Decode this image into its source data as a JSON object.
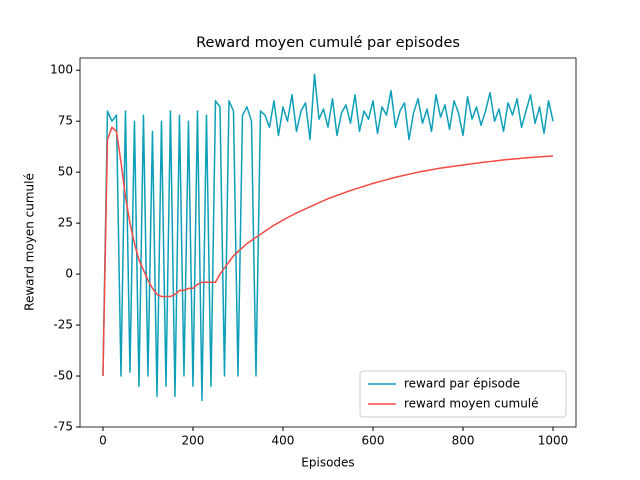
{
  "chart_data": {
    "type": "line",
    "title": "Reward moyen cumulé par episodes",
    "x_label": "Episodes",
    "y_label": "Reward moyen cumulé",
    "x": [
      0,
      10,
      20,
      30,
      40,
      50,
      60,
      70,
      80,
      90,
      100,
      110,
      120,
      130,
      140,
      150,
      160,
      170,
      180,
      190,
      200,
      210,
      220,
      230,
      240,
      250,
      260,
      270,
      280,
      290,
      300,
      310,
      320,
      330,
      340,
      350,
      360,
      370,
      380,
      390,
      400,
      410,
      420,
      430,
      440,
      450,
      460,
      470,
      480,
      490,
      500,
      510,
      520,
      530,
      540,
      550,
      560,
      570,
      580,
      590,
      600,
      610,
      620,
      630,
      640,
      650,
      660,
      670,
      680,
      690,
      700,
      710,
      720,
      730,
      740,
      750,
      760,
      770,
      780,
      790,
      800,
      810,
      820,
      830,
      840,
      850,
      860,
      870,
      880,
      890,
      900,
      910,
      920,
      930,
      940,
      950,
      960,
      970,
      980,
      990,
      1000
    ],
    "series": [
      {
        "name": "reward par épisode",
        "color": "#0e9fb8",
        "values": [
          -50,
          80,
          75,
          78,
          -50,
          80,
          -48,
          75,
          -55,
          78,
          -50,
          70,
          -60,
          75,
          -55,
          80,
          -60,
          78,
          -50,
          75,
          -55,
          80,
          -62,
          78,
          -55,
          85,
          82,
          -50,
          85,
          80,
          -50,
          78,
          82,
          75,
          -50,
          80,
          78,
          72,
          85,
          68,
          82,
          75,
          88,
          70,
          80,
          84,
          66,
          98,
          76,
          81,
          72,
          86,
          68,
          79,
          83,
          74,
          88,
          70,
          80,
          76,
          85,
          69,
          82,
          78,
          90,
          72,
          80,
          84,
          66,
          79,
          86,
          74,
          81,
          70,
          88,
          77,
          83,
          71,
          85,
          79,
          68,
          87,
          76,
          82,
          73,
          80,
          89,
          75,
          81,
          70,
          84,
          78,
          86,
          72,
          80,
          88,
          74,
          82,
          69,
          85,
          75
        ]
      },
      {
        "name": "reward moyen cumulé",
        "color": "#f44a45",
        "values": [
          -50,
          66,
          72,
          70,
          55,
          38,
          25,
          15,
          7,
          2,
          -3,
          -7,
          -10,
          -11,
          -11,
          -11,
          -10,
          -8,
          -8,
          -7,
          -7,
          -5,
          -4,
          -4,
          -4,
          -4,
          0,
          3,
          6,
          9,
          11,
          13,
          15,
          16.5,
          18,
          19.5,
          21,
          22.5,
          24,
          25.2,
          26.5,
          27.7,
          28.8,
          30,
          31,
          32,
          33,
          34,
          35,
          36,
          37,
          37.8,
          38.6,
          39.4,
          40.2,
          41,
          41.7,
          42.4,
          43.1,
          43.8,
          44.5,
          45.1,
          45.7,
          46.3,
          46.9,
          47.5,
          48,
          48.5,
          49,
          49.5,
          50,
          50.4,
          50.8,
          51.2,
          51.6,
          52,
          52.3,
          52.6,
          52.9,
          53.2,
          53.5,
          53.8,
          54.1,
          54.4,
          54.7,
          55,
          55.2,
          55.5,
          55.7,
          56,
          56.2,
          56.4,
          56.6,
          56.8,
          57,
          57.2,
          57.4,
          57.5,
          57.7,
          57.8,
          58
        ]
      }
    ],
    "xlim": [
      -51,
      1051
    ],
    "ylim": [
      -75,
      106
    ],
    "xticks": [
      0,
      200,
      400,
      600,
      800,
      1000
    ],
    "yticks": [
      -75,
      -50,
      -25,
      0,
      25,
      50,
      75,
      100
    ],
    "legend": "lower right"
  }
}
